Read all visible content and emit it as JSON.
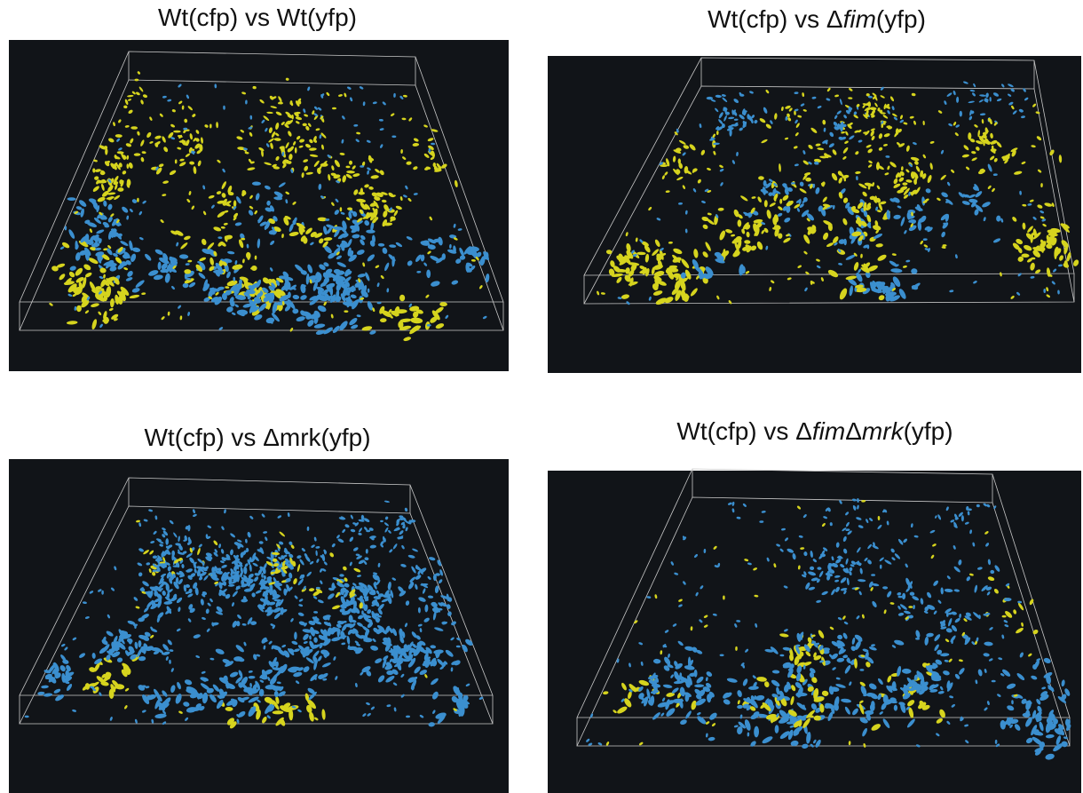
{
  "panels": [
    {
      "title_parts": [
        {
          "text": "Wt(cfp) vs Wt(yfp)",
          "italic": false
        }
      ]
    },
    {
      "title_parts": [
        {
          "text": "Wt(cfp) vs Δ",
          "italic": false
        },
        {
          "text": "fim",
          "italic": true
        },
        {
          "text": "(yfp)",
          "italic": false
        }
      ]
    },
    {
      "title_parts": [
        {
          "text": "Wt(cfp) vs Δmrk(yfp)",
          "italic": false
        }
      ]
    },
    {
      "title_parts": [
        {
          "text": "Wt(cfp) vs Δ",
          "italic": false
        },
        {
          "text": "fim",
          "italic": true
        },
        {
          "text": "Δ",
          "italic": false
        },
        {
          "text": "mrk",
          "italic": true
        },
        {
          "text": "(yfp)",
          "italic": false
        }
      ]
    }
  ]
}
